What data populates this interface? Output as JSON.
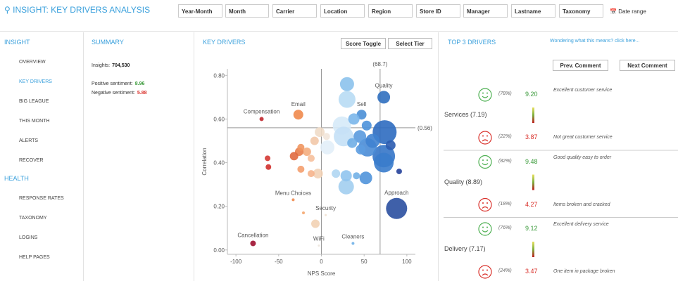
{
  "header": {
    "title": "INSIGHT: KEY DRIVERS ANALYSIS",
    "filters": [
      "Year-Month",
      "Month",
      "Carrier",
      "Location",
      "Region",
      "Store ID",
      "Manager",
      "Lastname",
      "Taxonomy"
    ],
    "date_range": "Date range"
  },
  "nav": {
    "sections": [
      {
        "title": "INSIGHT",
        "items": [
          "OVERVIEW",
          "KEY DRIVERS",
          "BIG LEAGUE",
          "THIS MONTH",
          "ALERTS",
          "RECOVER"
        ]
      },
      {
        "title": "HEALTH",
        "items": [
          "RESPONSE RATES",
          "TAXONOMY",
          "LOGINS",
          "HELP PAGES"
        ]
      }
    ]
  },
  "summary": {
    "title": "SUMMARY",
    "rows": [
      {
        "label": "Insights:",
        "value": "704,530"
      },
      {
        "label": "Positive sentiment:",
        "value": "8.96",
        "color": "#3a9a3a"
      },
      {
        "label": "Negative sentiment:",
        "value": "5.88",
        "color": "#d9302a"
      }
    ]
  },
  "key_drivers": {
    "title": "KEY DRIVERS",
    "buttons": [
      "Score Toggle",
      "Select Tier"
    ],
    "chart": {
      "type": "scatter",
      "x_label": "NPS Score",
      "y_label": "Correlation",
      "xlim": [
        -110,
        110
      ],
      "ylim": [
        -0.02,
        0.83
      ],
      "xticks": [
        -100,
        -50,
        0,
        50,
        100
      ],
      "yticks": [
        {
          "value": 0,
          "label": "0.00"
        },
        {
          "value": 0.2,
          "label": "0.20"
        },
        {
          "value": 0.4,
          "label": "0.40"
        },
        {
          "value": 0.6,
          "label": "0.60"
        },
        {
          "value": 0.8,
          "label": "0.80"
        }
      ],
      "ref_lines": [
        {
          "axis": "x",
          "value": 0
        },
        {
          "axis": "x",
          "value": 68.7,
          "label": "(68.7)"
        },
        {
          "axis": "y",
          "value": 0.56,
          "label": "(0.56)"
        }
      ],
      "points": [
        {
          "label": "Compensation",
          "x": -70,
          "y": 0.6,
          "size": 3,
          "color": "#c0272d"
        },
        {
          "label": "Email",
          "x": -27,
          "y": 0.62,
          "size": 7,
          "color": "#ef8a4c"
        },
        {
          "label": "Quality",
          "x": 73,
          "y": 0.7,
          "size": 9,
          "color": "#2f6fbf"
        },
        {
          "label": "Sell",
          "x": 47,
          "y": 0.62,
          "size": 7,
          "color": "#4a8fd6"
        },
        {
          "label": "Menu Choices",
          "x": -33,
          "y": 0.23,
          "size": 2,
          "color": "#ef8a4c"
        },
        {
          "label": "Security",
          "x": 5,
          "y": 0.16,
          "size": 1,
          "color": "#f0e0d0"
        },
        {
          "label": "Cancellation",
          "x": -80,
          "y": 0.03,
          "size": 4,
          "color": "#9e1030"
        },
        {
          "label": "WiFi",
          "x": -3,
          "y": 0.02,
          "size": 1,
          "color": "#ece4dc"
        },
        {
          "label": "Cleaners",
          "x": 37,
          "y": 0.03,
          "size": 2,
          "color": "#6fb0e8"
        },
        {
          "label": "Approach",
          "x": 88,
          "y": 0.19,
          "size": 15,
          "color": "#2a4fa0"
        },
        {
          "label": null,
          "x": 30,
          "y": 0.76,
          "size": 10,
          "color": "#8cc2ec"
        },
        {
          "label": null,
          "x": 30,
          "y": 0.69,
          "size": 12,
          "color": "#b8dcf4"
        },
        {
          "label": null,
          "x": 24,
          "y": 0.57,
          "size": 13,
          "color": "#d6eaf8"
        },
        {
          "label": null,
          "x": 26,
          "y": 0.52,
          "size": 14,
          "color": "#c4e0f6"
        },
        {
          "label": null,
          "x": 7,
          "y": 0.47,
          "size": 10,
          "color": "#e2eef8"
        },
        {
          "label": null,
          "x": 38,
          "y": 0.6,
          "size": 8,
          "color": "#7ab6ea"
        },
        {
          "label": null,
          "x": 53,
          "y": 0.57,
          "size": 7,
          "color": "#4e92da"
        },
        {
          "label": null,
          "x": 74,
          "y": 0.54,
          "size": 17,
          "color": "#2e6cc0"
        },
        {
          "label": null,
          "x": 73,
          "y": 0.43,
          "size": 16,
          "color": "#3576c8"
        },
        {
          "label": null,
          "x": 73,
          "y": 0.4,
          "size": 14,
          "color": "#3a7ccc"
        },
        {
          "label": null,
          "x": 54,
          "y": 0.47,
          "size": 13,
          "color": "#4a8cd6"
        },
        {
          "label": null,
          "x": 60,
          "y": 0.5,
          "size": 10,
          "color": "#3f82d0"
        },
        {
          "label": null,
          "x": 45,
          "y": 0.52,
          "size": 9,
          "color": "#5a9ade"
        },
        {
          "label": null,
          "x": 36,
          "y": 0.49,
          "size": 7,
          "color": "#70aee6"
        },
        {
          "label": null,
          "x": 46,
          "y": 0.46,
          "size": 7,
          "color": "#5c9ce0"
        },
        {
          "label": null,
          "x": 81,
          "y": 0.48,
          "size": 7,
          "color": "#2c5cb0"
        },
        {
          "label": null,
          "x": 91,
          "y": 0.36,
          "size": 4,
          "color": "#24409a"
        },
        {
          "label": null,
          "x": 52,
          "y": 0.33,
          "size": 9,
          "color": "#5094da"
        },
        {
          "label": null,
          "x": 29,
          "y": 0.29,
          "size": 11,
          "color": "#a2cef0"
        },
        {
          "label": null,
          "x": 29,
          "y": 0.34,
          "size": 8,
          "color": "#90c4ee"
        },
        {
          "label": null,
          "x": 41,
          "y": 0.34,
          "size": 5,
          "color": "#72b0e6"
        },
        {
          "label": null,
          "x": 17,
          "y": 0.35,
          "size": 6,
          "color": "#b0d6f2"
        },
        {
          "label": null,
          "x": -2,
          "y": 0.54,
          "size": 7,
          "color": "#f0dcc8"
        },
        {
          "label": null,
          "x": 6,
          "y": 0.52,
          "size": 5,
          "color": "#f2e6da"
        },
        {
          "label": null,
          "x": -8,
          "y": 0.5,
          "size": 6,
          "color": "#f2c8a8"
        },
        {
          "label": null,
          "x": -4,
          "y": 0.35,
          "size": 7,
          "color": "#f2d2b6"
        },
        {
          "label": null,
          "x": -17,
          "y": 0.45,
          "size": 6,
          "color": "#f4ad7e"
        },
        {
          "label": null,
          "x": -26,
          "y": 0.45,
          "size": 6,
          "color": "#e87e4c"
        },
        {
          "label": null,
          "x": -32,
          "y": 0.43,
          "size": 6,
          "color": "#e06a40"
        },
        {
          "label": null,
          "x": -24,
          "y": 0.47,
          "size": 5,
          "color": "#ef9660"
        },
        {
          "label": null,
          "x": -12,
          "y": 0.42,
          "size": 5,
          "color": "#f6c09c"
        },
        {
          "label": null,
          "x": -24,
          "y": 0.37,
          "size": 5,
          "color": "#f49e6e"
        },
        {
          "label": null,
          "x": -12,
          "y": 0.35,
          "size": 5,
          "color": "#f6b48c"
        },
        {
          "label": null,
          "x": -63,
          "y": 0.42,
          "size": 4,
          "color": "#d43a34"
        },
        {
          "label": null,
          "x": -62,
          "y": 0.38,
          "size": 4,
          "color": "#d0302c"
        },
        {
          "label": null,
          "x": -7,
          "y": 0.12,
          "size": 6,
          "color": "#f2d2b4"
        },
        {
          "label": null,
          "x": -21,
          "y": 0.17,
          "size": 2,
          "color": "#f4a66e"
        }
      ]
    }
  },
  "top_drivers": {
    "title": "TOP 3 DRIVERS",
    "link": "Wondering what this means? click here...",
    "buttons": [
      "Prev. Comment",
      "Next Comment"
    ],
    "groups": [
      {
        "label": "Services (7.19)",
        "positive": {
          "share": "(78%)",
          "score": "9.20",
          "comment": "Excellent customer service"
        },
        "negative": {
          "share": "(22%)",
          "score": "3.87",
          "comment": "Not great customer service"
        }
      },
      {
        "label": "Quality (8.89)",
        "positive": {
          "share": "(82%)",
          "score": "9.48",
          "comment": "Good quality easy to order"
        },
        "negative": {
          "share": "(18%)",
          "score": "4.27",
          "comment": "Items broken and cracked"
        }
      },
      {
        "label": "Delivery (7.17)",
        "positive": {
          "share": "(76%)",
          "score": "9.12",
          "comment": "Excellent delivery service"
        },
        "negative": {
          "share": "(24%)",
          "score": "3.47",
          "comment": "One item in package broken"
        }
      }
    ]
  }
}
